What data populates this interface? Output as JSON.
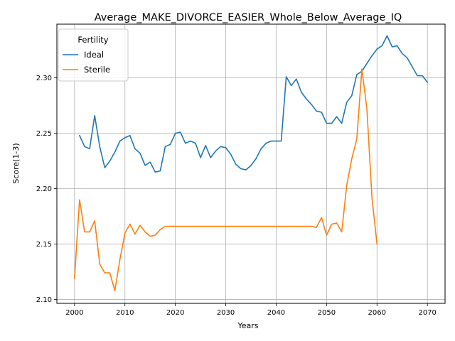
{
  "chart_data": {
    "type": "line",
    "title": "Average_MAKE_DIVORCE_EASIER_Whole_Below_Average_IQ",
    "xlabel": "Years",
    "ylabel": "Score(1-3)",
    "xlim": [
      1996.5,
      2073.5
    ],
    "ylim": [
      2.0965,
      2.3485
    ],
    "xticks": [
      2000,
      2010,
      2020,
      2030,
      2040,
      2050,
      2060,
      2070
    ],
    "xtick_labels": [
      "2000",
      "2010",
      "2020",
      "2030",
      "2040",
      "2050",
      "2060",
      "2070"
    ],
    "yticks": [
      2.1,
      2.15,
      2.2,
      2.25,
      2.3
    ],
    "ytick_labels": [
      "2.10",
      "2.15",
      "2.20",
      "2.25",
      "2.30"
    ],
    "grid": true,
    "legend": {
      "title": "Fertility",
      "placement": "top-left"
    },
    "series": [
      {
        "name": "Ideal",
        "color": "#1f77b4",
        "x": [
          2001,
          2002,
          2003,
          2004,
          2005,
          2006,
          2007,
          2008,
          2009,
          2010,
          2011,
          2012,
          2013,
          2014,
          2015,
          2016,
          2017,
          2018,
          2019,
          2020,
          2021,
          2022,
          2023,
          2024,
          2025,
          2026,
          2027,
          2028,
          2029,
          2030,
          2031,
          2032,
          2033,
          2034,
          2035,
          2036,
          2037,
          2038,
          2039,
          2040,
          2041,
          2042,
          2043,
          2044,
          2045,
          2046,
          2047,
          2048,
          2049,
          2050,
          2051,
          2052,
          2053,
          2054,
          2055,
          2056,
          2057,
          2058,
          2059,
          2060,
          2061,
          2062,
          2063,
          2064,
          2065,
          2066,
          2067,
          2068,
          2069,
          2070
        ],
        "values": [
          2.248,
          2.238,
          2.236,
          2.266,
          2.238,
          2.219,
          2.225,
          2.233,
          2.243,
          2.246,
          2.248,
          2.236,
          2.232,
          2.221,
          2.224,
          2.215,
          2.216,
          2.238,
          2.24,
          2.25,
          2.251,
          2.241,
          2.243,
          2.241,
          2.228,
          2.239,
          2.228,
          2.234,
          2.238,
          2.237,
          2.231,
          2.222,
          2.218,
          2.217,
          2.221,
          2.227,
          2.236,
          2.241,
          2.243,
          2.243,
          2.243,
          2.301,
          2.293,
          2.299,
          2.287,
          2.281,
          2.276,
          2.27,
          2.269,
          2.259,
          2.259,
          2.265,
          2.259,
          2.278,
          2.284,
          2.303,
          2.306,
          2.313,
          2.32,
          2.326,
          2.329,
          2.338,
          2.328,
          2.329,
          2.322,
          2.318,
          2.31,
          2.302,
          2.302,
          2.296
        ]
      },
      {
        "name": "Sterile",
        "color": "#ff7f0e",
        "x": [
          2000,
          2001,
          2002,
          2003,
          2004,
          2005,
          2006,
          2007,
          2008,
          2009,
          2010,
          2011,
          2012,
          2013,
          2014,
          2015,
          2016,
          2017,
          2018,
          2019,
          2020,
          2021,
          2022,
          2023,
          2024,
          2025,
          2026,
          2027,
          2028,
          2029,
          2030,
          2031,
          2032,
          2033,
          2034,
          2035,
          2036,
          2037,
          2038,
          2039,
          2040,
          2041,
          2042,
          2043,
          2044,
          2045,
          2046,
          2047,
          2048,
          2049,
          2050,
          2051,
          2052,
          2053,
          2054,
          2055,
          2056,
          2057,
          2058,
          2059,
          2060
        ],
        "values": [
          2.119,
          2.19,
          2.161,
          2.161,
          2.171,
          2.132,
          2.124,
          2.124,
          2.108,
          2.136,
          2.16,
          2.168,
          2.159,
          2.167,
          2.161,
          2.157,
          2.158,
          2.163,
          2.166,
          2.166,
          2.166,
          2.166,
          2.166,
          2.166,
          2.166,
          2.166,
          2.166,
          2.166,
          2.166,
          2.166,
          2.166,
          2.166,
          2.166,
          2.166,
          2.166,
          2.166,
          2.166,
          2.166,
          2.166,
          2.166,
          2.166,
          2.166,
          2.166,
          2.166,
          2.166,
          2.166,
          2.166,
          2.166,
          2.165,
          2.174,
          2.158,
          2.168,
          2.169,
          2.161,
          2.203,
          2.227,
          2.245,
          2.308,
          2.272,
          2.192,
          2.15
        ]
      }
    ]
  }
}
